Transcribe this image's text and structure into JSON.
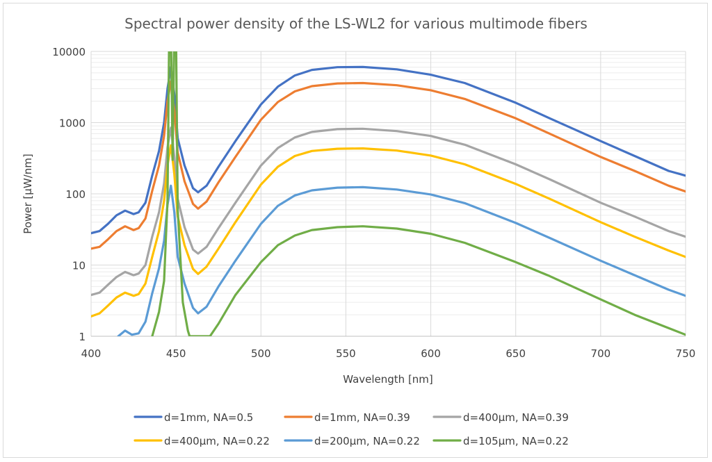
{
  "chart_data": {
    "type": "line",
    "title": "Spectral power density of the LS-WL2 for various multimode fibers",
    "xlabel": "Wavelength [nm]",
    "ylabel": "Power [µW/nm]",
    "xlim": [
      400,
      750
    ],
    "ylim": [
      1,
      10000
    ],
    "yscale": "log",
    "x_ticks": [
      "400",
      "450",
      "500",
      "550",
      "600",
      "650",
      "700",
      "750"
    ],
    "y_ticks": [
      "1",
      "10",
      "100",
      "1000",
      "10000"
    ],
    "grid": true,
    "legend_position": "bottom",
    "series": [
      {
        "name": "d=1mm, NA=0.5",
        "color": "#4472C4",
        "points": [
          [
            400,
            28
          ],
          [
            405,
            30
          ],
          [
            410,
            38
          ],
          [
            415,
            50
          ],
          [
            420,
            58
          ],
          [
            425,
            52
          ],
          [
            428,
            55
          ],
          [
            432,
            75
          ],
          [
            436,
            180
          ],
          [
            440,
            400
          ],
          [
            443,
            1000
          ],
          [
            445,
            3000
          ],
          [
            447,
            6000
          ],
          [
            449,
            2500
          ],
          [
            451,
            600
          ],
          [
            455,
            250
          ],
          [
            460,
            120
          ],
          [
            463,
            105
          ],
          [
            468,
            130
          ],
          [
            475,
            240
          ],
          [
            485,
            550
          ],
          [
            500,
            1800
          ],
          [
            510,
            3200
          ],
          [
            520,
            4600
          ],
          [
            530,
            5500
          ],
          [
            545,
            6000
          ],
          [
            560,
            6050
          ],
          [
            580,
            5600
          ],
          [
            600,
            4700
          ],
          [
            620,
            3600
          ],
          [
            650,
            1900
          ],
          [
            670,
            1150
          ],
          [
            700,
            550
          ],
          [
            720,
            340
          ],
          [
            740,
            210
          ],
          [
            750,
            180
          ]
        ]
      },
      {
        "name": "d=1mm, NA=0.39",
        "color": "#ED7D31",
        "points": [
          [
            400,
            17
          ],
          [
            405,
            18
          ],
          [
            410,
            23
          ],
          [
            415,
            30
          ],
          [
            420,
            35
          ],
          [
            425,
            31
          ],
          [
            428,
            33
          ],
          [
            432,
            45
          ],
          [
            436,
            110
          ],
          [
            440,
            250
          ],
          [
            443,
            650
          ],
          [
            445,
            2000
          ],
          [
            447,
            3800
          ],
          [
            449,
            1500
          ],
          [
            451,
            380
          ],
          [
            455,
            150
          ],
          [
            460,
            72
          ],
          [
            463,
            62
          ],
          [
            468,
            78
          ],
          [
            475,
            145
          ],
          [
            485,
            330
          ],
          [
            500,
            1100
          ],
          [
            510,
            1950
          ],
          [
            520,
            2750
          ],
          [
            530,
            3250
          ],
          [
            545,
            3550
          ],
          [
            560,
            3600
          ],
          [
            580,
            3350
          ],
          [
            600,
            2850
          ],
          [
            620,
            2150
          ],
          [
            650,
            1150
          ],
          [
            670,
            700
          ],
          [
            700,
            330
          ],
          [
            720,
            210
          ],
          [
            740,
            130
          ],
          [
            750,
            108
          ]
        ]
      },
      {
        "name": "d=400µm, NA=0.39",
        "color": "#A5A5A5",
        "points": [
          [
            400,
            3.8
          ],
          [
            405,
            4.1
          ],
          [
            410,
            5.3
          ],
          [
            415,
            6.8
          ],
          [
            420,
            8
          ],
          [
            425,
            7.2
          ],
          [
            428,
            7.6
          ],
          [
            432,
            10
          ],
          [
            436,
            25
          ],
          [
            440,
            55
          ],
          [
            443,
            140
          ],
          [
            445,
            450
          ],
          [
            447,
            850
          ],
          [
            449,
            330
          ],
          [
            451,
            85
          ],
          [
            455,
            34
          ],
          [
            460,
            16.5
          ],
          [
            463,
            14.5
          ],
          [
            468,
            18
          ],
          [
            475,
            33
          ],
          [
            485,
            75
          ],
          [
            500,
            250
          ],
          [
            510,
            440
          ],
          [
            520,
            620
          ],
          [
            530,
            740
          ],
          [
            545,
            810
          ],
          [
            560,
            820
          ],
          [
            580,
            760
          ],
          [
            600,
            650
          ],
          [
            620,
            490
          ],
          [
            650,
            260
          ],
          [
            670,
            160
          ],
          [
            700,
            75
          ],
          [
            720,
            48
          ],
          [
            740,
            30
          ],
          [
            750,
            25
          ]
        ]
      },
      {
        "name": "d=400µm, NA=0.22",
        "color": "#FFC000",
        "points": [
          [
            400,
            1.9
          ],
          [
            405,
            2.1
          ],
          [
            410,
            2.7
          ],
          [
            415,
            3.5
          ],
          [
            420,
            4.1
          ],
          [
            425,
            3.7
          ],
          [
            428,
            3.9
          ],
          [
            432,
            5.5
          ],
          [
            436,
            13
          ],
          [
            440,
            30
          ],
          [
            443,
            80
          ],
          [
            445,
            250
          ],
          [
            447,
            480
          ],
          [
            449,
            190
          ],
          [
            451,
            48
          ],
          [
            455,
            19
          ],
          [
            460,
            8.8
          ],
          [
            463,
            7.5
          ],
          [
            468,
            9.5
          ],
          [
            475,
            17
          ],
          [
            485,
            40
          ],
          [
            500,
            135
          ],
          [
            510,
            240
          ],
          [
            520,
            340
          ],
          [
            530,
            400
          ],
          [
            545,
            430
          ],
          [
            560,
            435
          ],
          [
            580,
            405
          ],
          [
            600,
            345
          ],
          [
            620,
            260
          ],
          [
            650,
            138
          ],
          [
            670,
            85
          ],
          [
            700,
            40
          ],
          [
            720,
            25
          ],
          [
            740,
            16
          ],
          [
            750,
            13
          ]
        ]
      },
      {
        "name": "d=200µm, NA=0.22",
        "color": "#5B9BD5",
        "points": [
          [
            416,
            1
          ],
          [
            420,
            1.2
          ],
          [
            424,
            1.05
          ],
          [
            428,
            1.1
          ],
          [
            432,
            1.6
          ],
          [
            436,
            4
          ],
          [
            440,
            9
          ],
          [
            443,
            22
          ],
          [
            445,
            70
          ],
          [
            447,
            130
          ],
          [
            449,
            55
          ],
          [
            451,
            13
          ],
          [
            455,
            5.5
          ],
          [
            460,
            2.5
          ],
          [
            463,
            2.1
          ],
          [
            468,
            2.6
          ],
          [
            475,
            5
          ],
          [
            485,
            11.5
          ],
          [
            500,
            38
          ],
          [
            510,
            68
          ],
          [
            520,
            95
          ],
          [
            530,
            112
          ],
          [
            545,
            122
          ],
          [
            560,
            124
          ],
          [
            580,
            115
          ],
          [
            600,
            98
          ],
          [
            620,
            74
          ],
          [
            650,
            39
          ],
          [
            670,
            24
          ],
          [
            700,
            11.5
          ],
          [
            720,
            7.2
          ],
          [
            740,
            4.5
          ],
          [
            750,
            3.7
          ]
        ]
      },
      {
        "name": "d=105µm, NA=0.22",
        "color": "#70AD47",
        "points": [
          [
            436,
            1
          ],
          [
            440,
            2.2
          ],
          [
            443,
            6
          ],
          [
            445,
            80
          ],
          [
            446,
            20000
          ],
          [
            447,
            20000
          ],
          [
            448,
            300
          ],
          [
            449,
            20000
          ],
          [
            450,
            20000
          ],
          [
            451,
            60
          ],
          [
            454,
            3
          ],
          [
            457,
            1.2
          ],
          [
            458,
            1
          ],
          [
            470,
            1
          ],
          [
            475,
            1.5
          ],
          [
            485,
            3.8
          ],
          [
            500,
            11
          ],
          [
            510,
            19
          ],
          [
            520,
            26
          ],
          [
            530,
            31
          ],
          [
            545,
            34
          ],
          [
            560,
            35
          ],
          [
            580,
            32.5
          ],
          [
            600,
            27.5
          ],
          [
            620,
            20.5
          ],
          [
            650,
            11
          ],
          [
            670,
            7
          ],
          [
            700,
            3.3
          ],
          [
            720,
            2
          ],
          [
            740,
            1.3
          ],
          [
            750,
            1.05
          ]
        ]
      }
    ]
  }
}
